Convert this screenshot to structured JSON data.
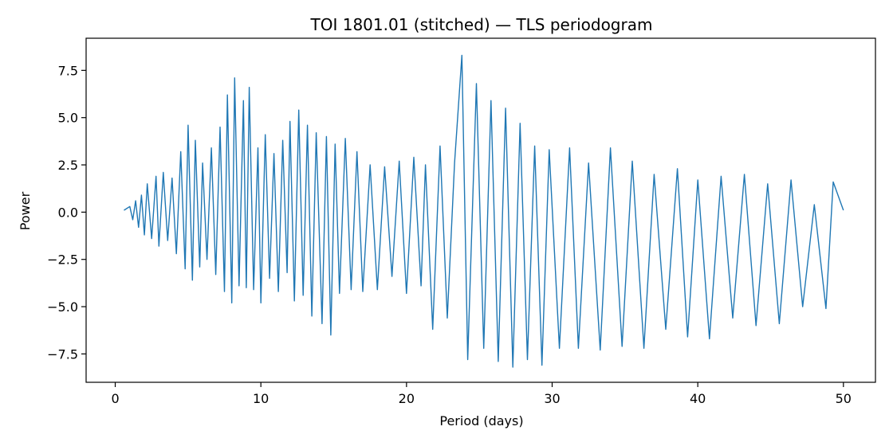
{
  "chart_data": {
    "type": "line",
    "title": "TOI 1801.01 (stitched) — TLS periodogram",
    "xlabel": "Period (days)",
    "ylabel": "Power",
    "xlim": [
      -2.0,
      52.2
    ],
    "ylim": [
      -9.0,
      9.2
    ],
    "xticks": [
      0,
      10,
      20,
      30,
      40,
      50
    ],
    "xtick_labels": [
      "0",
      "10",
      "20",
      "30",
      "40",
      "50"
    ],
    "yticks": [
      -7.5,
      -5.0,
      -2.5,
      0.0,
      2.5,
      5.0,
      7.5
    ],
    "ytick_labels": [
      "−7.5",
      "−5.0",
      "−2.5",
      "0.0",
      "2.5",
      "5.0",
      "7.5"
    ],
    "grid": false,
    "series": [
      {
        "color": "#1f77b4",
        "x": [
          0.6,
          1.0,
          1.2,
          1.4,
          1.6,
          1.8,
          2.0,
          2.2,
          2.5,
          2.8,
          3.0,
          3.3,
          3.6,
          3.9,
          4.2,
          4.5,
          4.8,
          5.0,
          5.3,
          5.5,
          5.8,
          6.0,
          6.3,
          6.6,
          6.9,
          7.2,
          7.5,
          7.7,
          8.0,
          8.2,
          8.5,
          8.8,
          9.0,
          9.2,
          9.5,
          9.8,
          10.0,
          10.3,
          10.6,
          10.9,
          11.2,
          11.5,
          11.8,
          12.0,
          12.3,
          12.6,
          12.9,
          13.2,
          13.5,
          13.8,
          14.2,
          14.5,
          14.8,
          15.1,
          15.4,
          15.8,
          16.2,
          16.6,
          17.0,
          17.5,
          18.0,
          18.5,
          19.0,
          19.5,
          20.0,
          20.5,
          21.0,
          21.3,
          21.8,
          22.3,
          22.8,
          23.3,
          23.8,
          24.2,
          24.8,
          25.3,
          25.8,
          26.3,
          26.8,
          27.3,
          27.8,
          28.3,
          28.8,
          29.3,
          29.8,
          30.5,
          31.2,
          31.8,
          32.5,
          33.3,
          34.0,
          34.8,
          35.5,
          36.3,
          37.0,
          37.8,
          38.6,
          39.3,
          40.0,
          40.8,
          41.6,
          42.4,
          43.2,
          44.0,
          44.8,
          45.6,
          46.4,
          47.2,
          48.0,
          48.8,
          49.3,
          50.0
        ],
        "y": [
          0.1,
          0.3,
          -0.4,
          0.6,
          -0.8,
          0.9,
          -1.2,
          1.5,
          -1.4,
          1.9,
          -1.8,
          2.1,
          -1.5,
          1.8,
          -2.2,
          3.2,
          -3.0,
          4.6,
          -3.6,
          3.8,
          -2.9,
          2.6,
          -2.5,
          3.4,
          -3.3,
          4.5,
          -4.2,
          6.2,
          -4.8,
          7.1,
          -3.9,
          5.9,
          -4.0,
          6.6,
          -4.1,
          3.4,
          -4.8,
          4.1,
          -3.5,
          3.1,
          -4.2,
          3.8,
          -3.2,
          4.8,
          -4.7,
          5.4,
          -4.4,
          4.6,
          -5.5,
          4.2,
          -5.9,
          4.0,
          -6.5,
          3.6,
          -4.3,
          3.9,
          -4.1,
          3.2,
          -4.2,
          2.5,
          -4.1,
          2.4,
          -3.4,
          2.7,
          -4.3,
          2.9,
          -3.9,
          2.5,
          -6.2,
          3.5,
          -5.6,
          2.6,
          8.3,
          -7.8,
          6.8,
          -7.2,
          5.9,
          -7.9,
          5.5,
          -8.2,
          4.7,
          -7.8,
          3.5,
          -8.1,
          3.3,
          -7.2,
          3.4,
          -7.2,
          2.6,
          -7.3,
          3.4,
          -7.1,
          2.7,
          -7.2,
          2.0,
          -6.2,
          2.3,
          -6.6,
          1.7,
          -6.7,
          1.9,
          -5.6,
          2.0,
          -6.0,
          1.5,
          -5.9,
          1.7,
          -5.0,
          0.4,
          -5.1,
          1.6,
          0.1
        ]
      }
    ]
  }
}
